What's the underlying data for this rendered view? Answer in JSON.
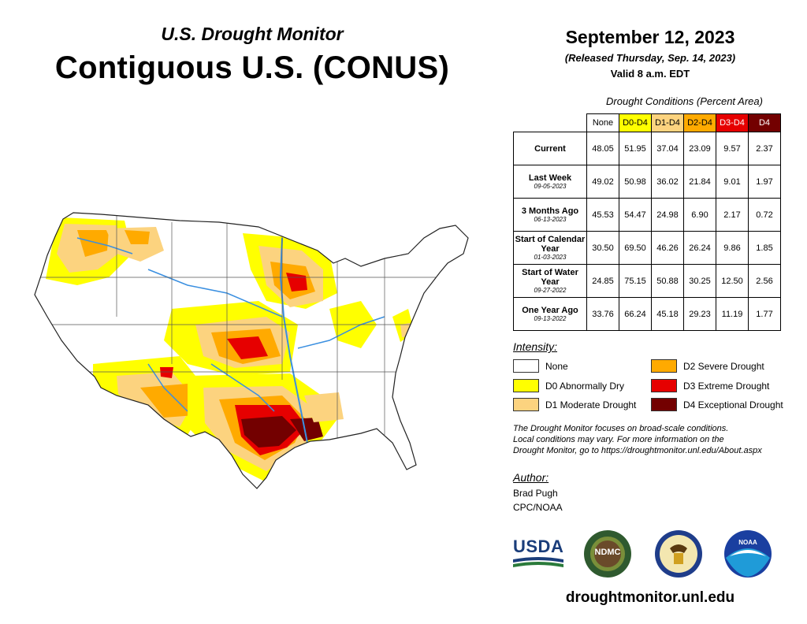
{
  "header": {
    "subtitle": "U.S. Drought Monitor",
    "title": "Contiguous U.S. (CONUS)",
    "date": "September 12, 2023",
    "released": "(Released Thursday, Sep. 14, 2023)",
    "valid": "Valid 8 a.m. EDT"
  },
  "table": {
    "caption": "Drought Conditions (Percent Area)",
    "columns": [
      {
        "label": "None",
        "color": "#ffffff",
        "text": "#000000"
      },
      {
        "label": "D0-D4",
        "color": "#ffff00",
        "text": "#000000"
      },
      {
        "label": "D1-D4",
        "color": "#fcd37f",
        "text": "#000000"
      },
      {
        "label": "D2-D4",
        "color": "#ffaa00",
        "text": "#000000"
      },
      {
        "label": "D3-D4",
        "color": "#e60000",
        "text": "#ffffff"
      },
      {
        "label": "D4",
        "color": "#730000",
        "text": "#ffffff"
      }
    ],
    "rows": [
      {
        "label": "Current",
        "sub": "",
        "values": [
          "48.05",
          "51.95",
          "37.04",
          "23.09",
          "9.57",
          "2.37"
        ]
      },
      {
        "label": "Last Week",
        "sub": "09-05-2023",
        "values": [
          "49.02",
          "50.98",
          "36.02",
          "21.84",
          "9.01",
          "1.97"
        ]
      },
      {
        "label": "3 Months Ago",
        "sub": "06-13-2023",
        "values": [
          "45.53",
          "54.47",
          "24.98",
          "6.90",
          "2.17",
          "0.72"
        ]
      },
      {
        "label": "Start of Calendar Year",
        "sub": "01-03-2023",
        "values": [
          "30.50",
          "69.50",
          "46.26",
          "26.24",
          "9.86",
          "1.85"
        ]
      },
      {
        "label": "Start of Water Year",
        "sub": "09-27-2022",
        "values": [
          "24.85",
          "75.15",
          "50.88",
          "30.25",
          "12.50",
          "2.56"
        ]
      },
      {
        "label": "One Year Ago",
        "sub": "09-13-2022",
        "values": [
          "33.76",
          "66.24",
          "45.18",
          "29.23",
          "11.19",
          "1.77"
        ]
      }
    ]
  },
  "legend": {
    "heading": "Intensity:",
    "items": [
      {
        "label": "None",
        "color": "#ffffff"
      },
      {
        "label": "D0 Abnormally Dry",
        "color": "#ffff00"
      },
      {
        "label": "D1 Moderate Drought",
        "color": "#fcd37f"
      },
      {
        "label": "D2 Severe Drought",
        "color": "#ffaa00"
      },
      {
        "label": "D3 Extreme Drought",
        "color": "#e60000"
      },
      {
        "label": "D4 Exceptional Drought",
        "color": "#730000"
      }
    ]
  },
  "note": {
    "line1": "The Drought Monitor focuses on broad-scale conditions.",
    "line2": "Local conditions may vary. For more information on the",
    "line3": "Drought Monitor, go to https://droughtmonitor.unl.edu/About.aspx"
  },
  "author": {
    "heading": "Author:",
    "name": "Brad Pugh",
    "org": "CPC/NOAA"
  },
  "logos": {
    "usda": "USDA",
    "ndmc": "NDMC",
    "noaa": "NOAA"
  },
  "url": "droughtmonitor.unl.edu"
}
